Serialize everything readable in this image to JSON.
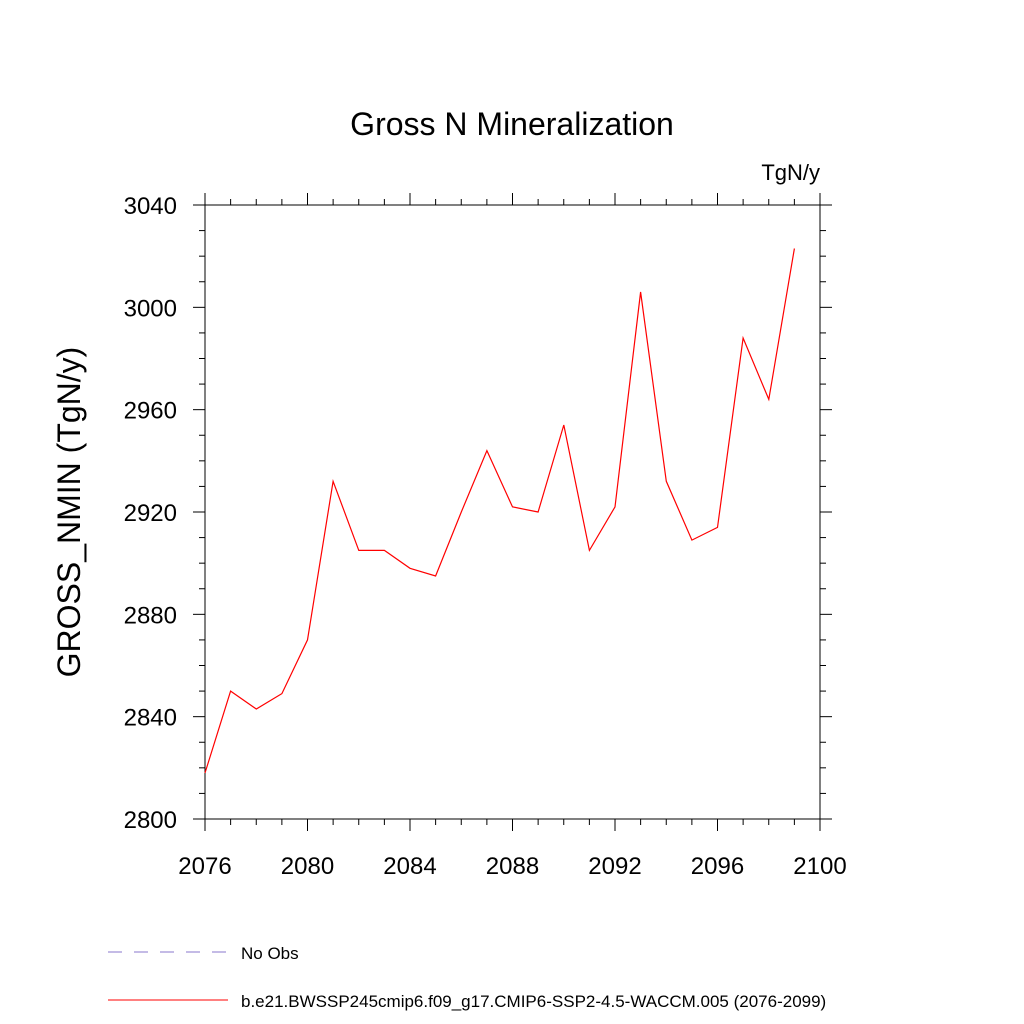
{
  "chart_data": {
    "type": "line",
    "title": "Gross N Mineralization",
    "units_label": "TgN/y",
    "ylabel": "GROSS_NMIN  (TgN/y)",
    "xlabel": "",
    "xlim": [
      2076,
      2100
    ],
    "ylim": [
      2800,
      3040
    ],
    "x_ticks": [
      2076,
      2080,
      2084,
      2088,
      2092,
      2096,
      2100
    ],
    "y_ticks": [
      2800,
      2840,
      2880,
      2920,
      2960,
      3000,
      3040
    ],
    "grid": false,
    "legend_position": "bottom",
    "series": [
      {
        "name": "b.e21.BWSSP245cmip6.f09_g17.CMIP6-SSP2-4.5-WACCM.005 (2076-2099)",
        "color": "#ff0000",
        "style": "solid",
        "x": [
          2076,
          2077,
          2078,
          2079,
          2080,
          2081,
          2082,
          2083,
          2084,
          2085,
          2086,
          2087,
          2088,
          2089,
          2090,
          2091,
          2092,
          2093,
          2094,
          2095,
          2096,
          2097,
          2098,
          2099
        ],
        "y": [
          2818,
          2850,
          2843,
          2849,
          2870,
          2932,
          2905,
          2905,
          2898,
          2895,
          2920,
          2944,
          2922,
          2920,
          2954,
          2905,
          2922,
          3006,
          2932,
          2909,
          2914,
          2988,
          2964,
          3023
        ]
      }
    ],
    "legend": [
      {
        "label": "No Obs",
        "color": "#8877cc",
        "style": "dashed"
      },
      {
        "label": "b.e21.BWSSP245cmip6.f09_g17.CMIP6-SSP2-4.5-WACCM.005 (2076-2099)",
        "color": "#ff0000",
        "style": "solid"
      }
    ]
  }
}
